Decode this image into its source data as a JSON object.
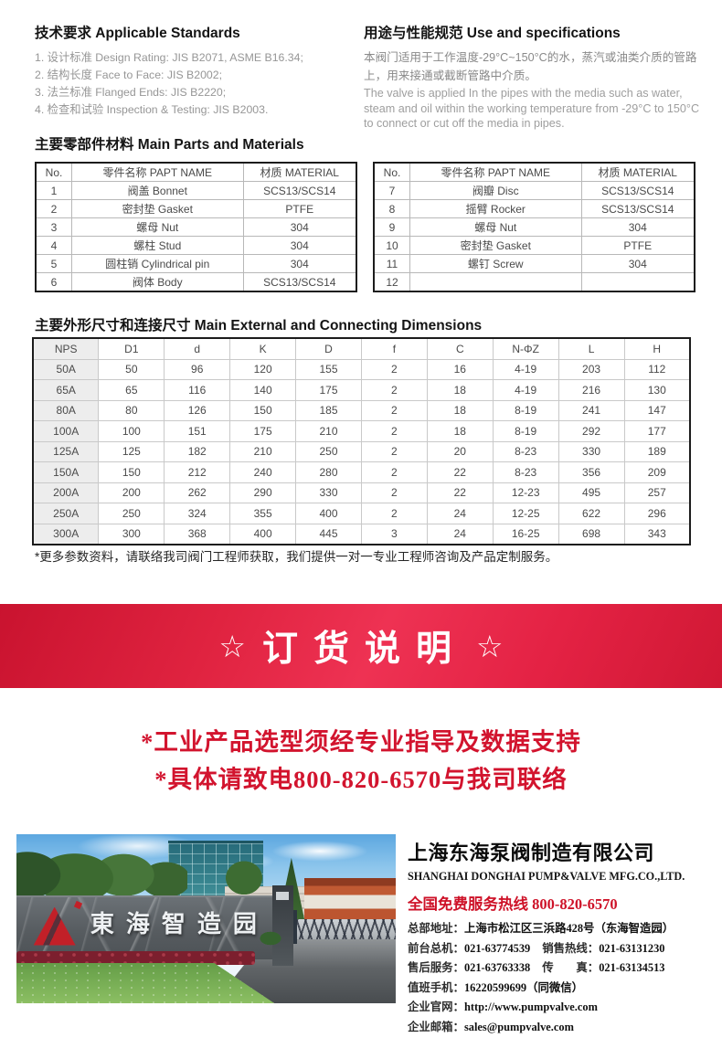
{
  "standards": {
    "title": "技术要求 Applicable Standards",
    "items": [
      "1. 设计标准 Design Rating: JIS B2071, ASME B16.34;",
      "2. 结构长度 Face to Face: JIS B2002;",
      "3. 法兰标准 Flanged Ends: JIS B2220;",
      "4. 检查和试验 Inspection & Testing: JIS B2003."
    ]
  },
  "use_spec": {
    "title": "用途与性能规范 Use and specifications",
    "text_cn": "本阀门适用于工作温度-29°C~150°C的水，蒸汽或油类介质的管路上，用来接通或截断管路中介质。",
    "text_en": "The valve is applied In the pipes with the media such as water, steam and oil within the working temperature from -29°C to 150°C to connect or cut off the media in pipes."
  },
  "materials": {
    "title": "主要零部件材料 Main Parts and Materials",
    "headers": [
      "No.",
      "零件名称 PAPT NAME",
      "材质 MATERIAL"
    ],
    "left_rows": [
      [
        "1",
        "阀盖 Bonnet",
        "SCS13/SCS14"
      ],
      [
        "2",
        "密封垫 Gasket",
        "PTFE"
      ],
      [
        "3",
        "螺母 Nut",
        "304"
      ],
      [
        "4",
        "螺柱 Stud",
        "304"
      ],
      [
        "5",
        "圆柱销 Cylindrical pin",
        "304"
      ],
      [
        "6",
        "阀体 Body",
        "SCS13/SCS14"
      ]
    ],
    "right_rows": [
      [
        "7",
        "阀瓣 Disc",
        "SCS13/SCS14"
      ],
      [
        "8",
        "摇臂 Rocker",
        "SCS13/SCS14"
      ],
      [
        "9",
        "螺母 Nut",
        "304"
      ],
      [
        "10",
        "密封垫 Gasket",
        "PTFE"
      ],
      [
        "11",
        "螺钉 Screw",
        "304"
      ],
      [
        "12",
        "",
        ""
      ]
    ]
  },
  "dimensions": {
    "title": "主要外形尺寸和连接尺寸 Main External and Connecting Dimensions",
    "headers": [
      "NPS",
      "D1",
      "d",
      "K",
      "D",
      "f",
      "C",
      "N-ΦZ",
      "L",
      "H"
    ],
    "rows": [
      [
        "50A",
        "50",
        "96",
        "120",
        "155",
        "2",
        "16",
        "4-19",
        "203",
        "112"
      ],
      [
        "65A",
        "65",
        "116",
        "140",
        "175",
        "2",
        "18",
        "4-19",
        "216",
        "130"
      ],
      [
        "80A",
        "80",
        "126",
        "150",
        "185",
        "2",
        "18",
        "8-19",
        "241",
        "147"
      ],
      [
        "100A",
        "100",
        "151",
        "175",
        "210",
        "2",
        "18",
        "8-19",
        "292",
        "177"
      ],
      [
        "125A",
        "125",
        "182",
        "210",
        "250",
        "2",
        "20",
        "8-23",
        "330",
        "189"
      ],
      [
        "150A",
        "150",
        "212",
        "240",
        "280",
        "2",
        "22",
        "8-23",
        "356",
        "209"
      ],
      [
        "200A",
        "200",
        "262",
        "290",
        "330",
        "2",
        "22",
        "12-23",
        "495",
        "257"
      ],
      [
        "250A",
        "250",
        "324",
        "355",
        "400",
        "2",
        "24",
        "12-25",
        "622",
        "296"
      ],
      [
        "300A",
        "300",
        "368",
        "400",
        "445",
        "3",
        "24",
        "16-25",
        "698",
        "343"
      ]
    ]
  },
  "note": "*更多参数资料，请联络我司阀门工程师获取，我们提供一对一专业工程师咨询及产品定制服务。",
  "order_banner": {
    "star": "☆",
    "text": "订货说明",
    "bg_color": "#e02340"
  },
  "slogans": [
    "*工业产品选型须经专业指导及数据支持",
    "*具体请致电800-820-6570与我司联络"
  ],
  "footer": {
    "photo_sign": "東海智造园",
    "company_cn": "上海东海泵阀制造有限公司",
    "company_en": "SHANGHAI DONGHAI PUMP&VALVE MFG.CO.,LTD.",
    "hotline_label": "全国免费服务热线",
    "hotline_number": "800-820-6570",
    "contacts": [
      {
        "label": "总部地址：",
        "value": "上海市松江区三浜路428号（东海智造园）"
      },
      {
        "label": "前台总机：",
        "value": "021-63774539",
        "label2": "销售热线：",
        "value2": "021-63131230"
      },
      {
        "label": "售后服务：",
        "value": "021-63763338",
        "label2": "传　　真：",
        "value2": "021-63134513"
      },
      {
        "label": "值班手机：",
        "value": "16220599699（同微信）"
      },
      {
        "label": "企业官网：",
        "value": "http://www.pumpvalve.com"
      },
      {
        "label": "企业邮箱：",
        "value": "sales@pumpvalve.com"
      }
    ]
  },
  "colors": {
    "accent_red": "#d2142e",
    "banner_red": "#e02340",
    "table_shade": "#ededed"
  }
}
